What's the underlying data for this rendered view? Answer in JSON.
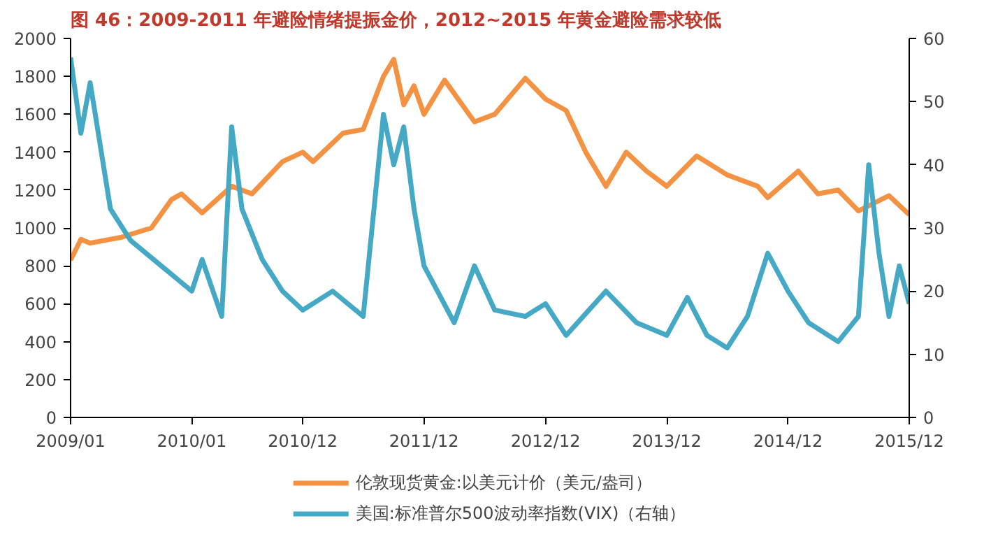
{
  "chart_data": {
    "type": "line",
    "title": "图 46：2009-2011 年避险情绪提振金价，2012~2015 年黄金避险需求较低",
    "xlim": [
      "2009-01",
      "2015-12"
    ],
    "xticks": [
      {
        "value": "2009-01",
        "label": "2009/01"
      },
      {
        "value": "2010-01",
        "label": "2010/01"
      },
      {
        "value": "2010-12",
        "label": "2010/12"
      },
      {
        "value": "2011-12",
        "label": "2011/12"
      },
      {
        "value": "2012-12",
        "label": "2012/12"
      },
      {
        "value": "2013-12",
        "label": "2013/12"
      },
      {
        "value": "2014-12",
        "label": "2014/12"
      },
      {
        "value": "2015-12",
        "label": "2015/12"
      }
    ],
    "ylim": [
      0,
      2000
    ],
    "yticks": [
      0,
      200,
      400,
      600,
      800,
      1000,
      1200,
      1400,
      1600,
      1800,
      2000
    ],
    "y2lim": [
      0,
      60
    ],
    "y2ticks": [
      0,
      10,
      20,
      30,
      40,
      50,
      60
    ],
    "grid": false,
    "legend": "bottom",
    "series": [
      {
        "name": "伦敦现货黄金:以美元计价（美元/盎司）",
        "color": "#f39243",
        "x": [
          "2009-01",
          "2009-02",
          "2009-03",
          "2009-06",
          "2009-09",
          "2009-11",
          "2009-12",
          "2010-02",
          "2010-05",
          "2010-07",
          "2010-10",
          "2010-12",
          "2011-01",
          "2011-04",
          "2011-06",
          "2011-08",
          "2011-09",
          "2011-10",
          "2011-11",
          "2011-12",
          "2012-02",
          "2012-05",
          "2012-07",
          "2012-10",
          "2012-12",
          "2013-02",
          "2013-04",
          "2013-06",
          "2013-08",
          "2013-10",
          "2013-12",
          "2014-03",
          "2014-06",
          "2014-09",
          "2014-10",
          "2015-01",
          "2015-03",
          "2015-05",
          "2015-07",
          "2015-10",
          "2015-12"
        ],
        "values": [
          830,
          940,
          920,
          950,
          1000,
          1150,
          1180,
          1080,
          1220,
          1180,
          1350,
          1400,
          1350,
          1500,
          1520,
          1800,
          1890,
          1650,
          1750,
          1600,
          1780,
          1560,
          1600,
          1790,
          1680,
          1620,
          1400,
          1220,
          1400,
          1300,
          1220,
          1380,
          1280,
          1220,
          1160,
          1300,
          1180,
          1200,
          1090,
          1170,
          1070
        ]
      },
      {
        "name": "美国:标准普尔500波动率指数(VIX)（右轴）",
        "color": "#45a9c6",
        "axis": "y2",
        "x": [
          "2009-01",
          "2009-02",
          "2009-03",
          "2009-05",
          "2009-07",
          "2009-10",
          "2010-01",
          "2010-02",
          "2010-04",
          "2010-05",
          "2010-06",
          "2010-08",
          "2010-10",
          "2010-12",
          "2011-03",
          "2011-06",
          "2011-08",
          "2011-09",
          "2011-10",
          "2011-11",
          "2011-12",
          "2012-03",
          "2012-05",
          "2012-07",
          "2012-10",
          "2012-12",
          "2013-02",
          "2013-06",
          "2013-09",
          "2013-12",
          "2014-02",
          "2014-04",
          "2014-06",
          "2014-08",
          "2014-10",
          "2014-12",
          "2015-02",
          "2015-05",
          "2015-07",
          "2015-08",
          "2015-09",
          "2015-10",
          "2015-11",
          "2015-12"
        ],
        "values": [
          57,
          45,
          53,
          33,
          28,
          24,
          20,
          25,
          16,
          46,
          33,
          25,
          20,
          17,
          20,
          16,
          48,
          40,
          46,
          33,
          24,
          15,
          24,
          17,
          16,
          18,
          13,
          20,
          15,
          13,
          19,
          13,
          11,
          16,
          26,
          20,
          15,
          12,
          16,
          40,
          26,
          16,
          24,
          18
        ]
      }
    ]
  }
}
